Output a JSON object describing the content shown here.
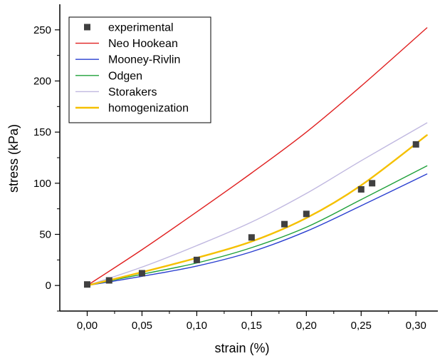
{
  "chart_data": {
    "type": "scatter",
    "title": "",
    "xlabel": "strain (%)",
    "ylabel": "stress (kPa)",
    "xlim": [
      -0.025,
      0.32
    ],
    "ylim": [
      -25,
      275
    ],
    "x_ticks": [
      "0,00",
      "0,05",
      "0,10",
      "0,15",
      "0,20",
      "0,25",
      "0,30"
    ],
    "y_ticks": [
      "0",
      "50",
      "100",
      "150",
      "200",
      "250"
    ],
    "grid": false,
    "legend_position": "top-left",
    "series": [
      {
        "name": "experimental",
        "kind": "points",
        "color": "#404040",
        "marker": "square",
        "x": [
          0.0,
          0.02,
          0.05,
          0.1,
          0.15,
          0.18,
          0.2,
          0.25,
          0.26,
          0.3
        ],
        "y": [
          1,
          5,
          12,
          25,
          47,
          60,
          70,
          94,
          100,
          138
        ]
      },
      {
        "name": "Neo Hookean",
        "kind": "line",
        "color": "#e02020",
        "x": [
          0.0,
          0.05,
          0.1,
          0.15,
          0.2,
          0.25,
          0.31
        ],
        "y": [
          0,
          35,
          72,
          110,
          150,
          195,
          252
        ]
      },
      {
        "name": "Mooney-Rivlin",
        "kind": "line",
        "color": "#2a3fd0",
        "x": [
          0.0,
          0.05,
          0.1,
          0.15,
          0.2,
          0.25,
          0.31
        ],
        "y": [
          0,
          9,
          19,
          33,
          53,
          78,
          109
        ]
      },
      {
        "name": "Odgen",
        "kind": "line",
        "color": "#1fa03a",
        "x": [
          0.0,
          0.05,
          0.1,
          0.15,
          0.2,
          0.25,
          0.31
        ],
        "y": [
          0,
          11,
          22,
          37,
          57,
          84,
          117
        ]
      },
      {
        "name": "Storakers",
        "kind": "line",
        "color": "#c0b8e0",
        "x": [
          0.0,
          0.05,
          0.1,
          0.15,
          0.2,
          0.25,
          0.31
        ],
        "y": [
          0,
          18,
          39,
          62,
          90,
          122,
          159
        ]
      },
      {
        "name": "homogenization",
        "kind": "line",
        "color": "#f5c000",
        "x": [
          0.0,
          0.05,
          0.1,
          0.15,
          0.2,
          0.25,
          0.31
        ],
        "y": [
          0,
          13,
          27,
          43,
          66,
          98,
          147
        ]
      }
    ]
  }
}
